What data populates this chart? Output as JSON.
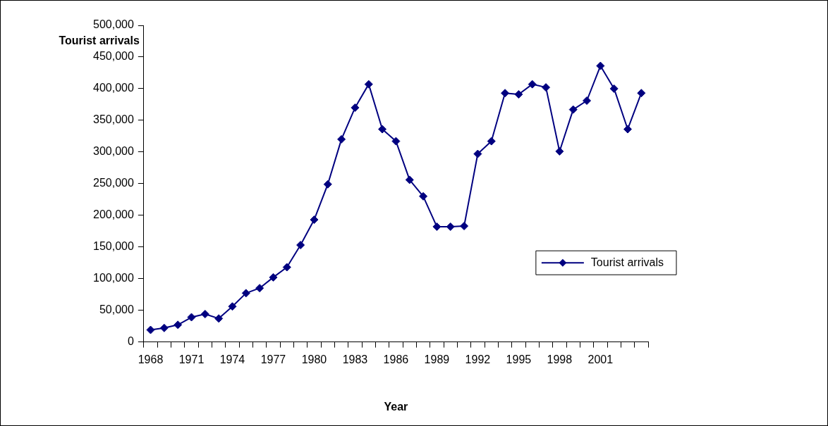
{
  "chart_data": {
    "type": "line",
    "xlabel": "Year",
    "ylabel": "Tourist arrivals",
    "categories": [
      "1968",
      null,
      null,
      "1971",
      null,
      null,
      "1974",
      null,
      null,
      "1977",
      null,
      null,
      "1980",
      null,
      null,
      "1983",
      null,
      null,
      "1986",
      null,
      null,
      "1989",
      null,
      null,
      "1992",
      null,
      null,
      "1995",
      null,
      null,
      "1998",
      null,
      null,
      "2001",
      null,
      null,
      null
    ],
    "series": [
      {
        "name": "Tourist arrivals",
        "color": "#000080",
        "values": [
          19000,
          22000,
          27000,
          39000,
          44000,
          37000,
          56000,
          77000,
          85000,
          102000,
          118000,
          153000,
          193000,
          249000,
          320000,
          370000,
          407000,
          336000,
          317000,
          256000,
          230000,
          182000,
          182000,
          183000,
          297000,
          317000,
          393000,
          391000,
          407000,
          402000,
          301000,
          367000,
          381000,
          436000,
          400000,
          336000,
          393000
        ]
      }
    ],
    "ylim": [
      0,
      500000
    ],
    "yticks": [
      0,
      {
        "value": 50000,
        "label": "50,000"
      },
      {
        "value": 100000,
        "label": "100,000"
      },
      {
        "value": 150000,
        "label": "150,000"
      },
      {
        "value": 200000,
        "label": "200,000"
      },
      {
        "value": 250000,
        "label": "250,000"
      },
      {
        "value": 300000,
        "label": "300,000"
      },
      {
        "value": 350000,
        "label": "350,000"
      },
      {
        "value": 400000,
        "label": "400,000"
      },
      {
        "value": 450000,
        "label": "450,000"
      },
      {
        "value": 500000,
        "label": "500,000"
      }
    ],
    "grid": false,
    "legend": "right",
    "marker": "diamond",
    "line_style": "solid"
  }
}
